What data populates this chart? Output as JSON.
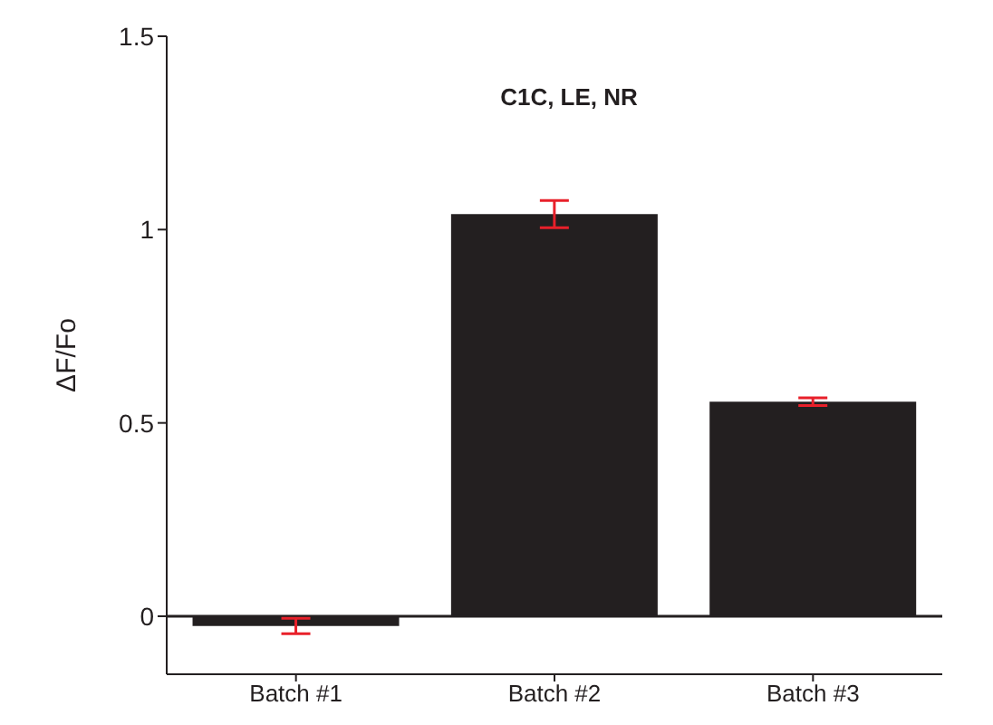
{
  "chart_data": {
    "type": "bar",
    "title": "C1C, LE, NR",
    "ylabel": "ΔF/Fo",
    "categories": [
      "Batch #1",
      "Batch #2",
      "Batch #3"
    ],
    "values": [
      -0.025,
      1.04,
      0.555
    ],
    "color": "#231f20",
    "errors": [
      0.02,
      0.035,
      0.01
    ],
    "ylim": [
      -0.15,
      1.5
    ],
    "yticks": [
      0,
      0.5,
      1,
      1.5
    ],
    "ref_lines": [
      {
        "axis": "y",
        "value": 0,
        "color": "#231f20"
      }
    ],
    "grid": false,
    "legend": false
  }
}
